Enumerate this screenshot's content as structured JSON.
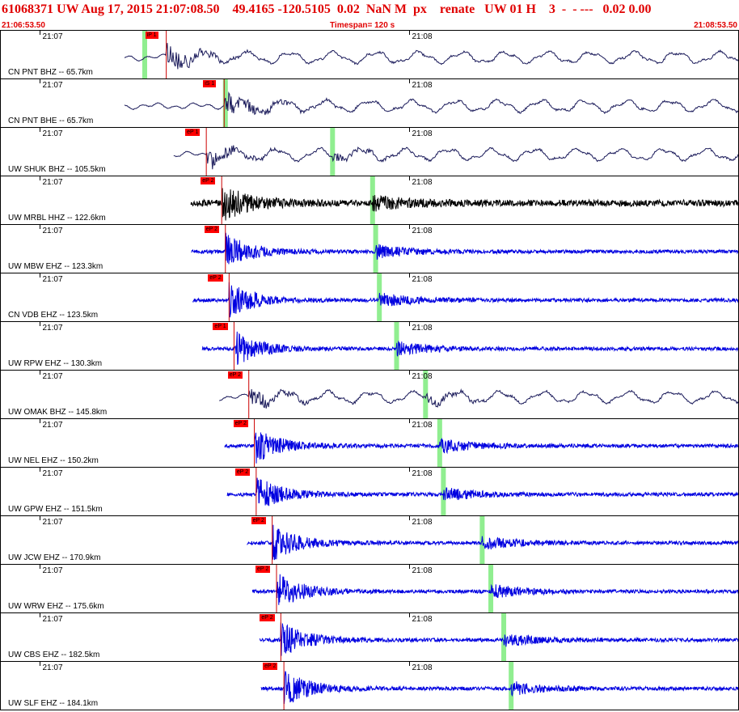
{
  "header": {
    "title": "61068371 UW Aug 17, 2015 21:07:08.50    49.4165 -120.5105  0.02  NaN M  px    renate   UW 01 H    3  -  - ---   0.02 0.00",
    "start_time": "21:06:53.50",
    "timespan": "Timespan= 120 s",
    "end_time": "21:08:53.50"
  },
  "minute_labels": [
    "21:07",
    "21:08"
  ],
  "colors": {
    "header_text": "#e00000",
    "pick_tag": "#ff0000",
    "pick_line": "#cc0000",
    "s_marker": "#90ee90",
    "trace_broadband": "#1a1a5a",
    "trace_hhz": "#000000",
    "trace_short_period": "#0000e0"
  },
  "channels": [
    {
      "label": "CN PNT BHZ -- 65.7km",
      "pick": "iP 1",
      "p_time": 27.0,
      "s_time": 23.5,
      "trace_start": 20.2,
      "kind": "broadband"
    },
    {
      "label": "CN PNT BHE -- 65.7km",
      "pick": "iS 1",
      "p_time": 36.4,
      "s_time": 36.6,
      "trace_start": 20.2,
      "kind": "broadband"
    },
    {
      "label": "UW SHUK BHZ -- 105.5km",
      "pick": "eP 1",
      "p_time": 33.5,
      "s_time": 54.0,
      "trace_start": 28.2,
      "kind": "broadband"
    },
    {
      "label": "UW MRBL HHZ -- 122.6km",
      "pick": "eP 2",
      "p_time": 36.0,
      "s_time": 60.5,
      "trace_start": 31.0,
      "kind": "hhz"
    },
    {
      "label": "UW MBW EHZ -- 123.3km",
      "pick": "eP 2",
      "p_time": 36.6,
      "s_time": 61.0,
      "trace_start": 31.1,
      "kind": "short_period"
    },
    {
      "label": "CN VDB EHZ -- 123.5km",
      "pick": "eP 2",
      "p_time": 37.2,
      "s_time": 61.6,
      "trace_start": 31.3,
      "kind": "short_period"
    },
    {
      "label": "UW RPW EHZ -- 130.3km",
      "pick": "eP 1",
      "p_time": 38.0,
      "s_time": 64.4,
      "trace_start": 32.8,
      "kind": "short_period"
    },
    {
      "label": "UW OMAK BHZ -- 145.8km",
      "pick": "eP 2",
      "p_time": 40.4,
      "s_time": 69.1,
      "trace_start": 35.6,
      "kind": "broadband"
    },
    {
      "label": "UW NEL EHZ -- 150.2km",
      "pick": "eP 2",
      "p_time": 41.3,
      "s_time": 71.4,
      "trace_start": 36.5,
      "kind": "short_period"
    },
    {
      "label": "UW GPW EHZ -- 151.5km",
      "pick": "eP 2",
      "p_time": 41.6,
      "s_time": 72.0,
      "trace_start": 36.9,
      "kind": "short_period"
    },
    {
      "label": "UW JCW EHZ -- 170.9km",
      "pick": "eP 2",
      "p_time": 44.2,
      "s_time": 78.3,
      "trace_start": 40.1,
      "kind": "short_period"
    },
    {
      "label": "UW WRW EHZ -- 175.6km",
      "pick": "eP 2",
      "p_time": 44.9,
      "s_time": 79.7,
      "trace_start": 41.0,
      "kind": "short_period"
    },
    {
      "label": "UW CBS EHZ -- 182.5km",
      "pick": "eP 2",
      "p_time": 45.6,
      "s_time": 81.8,
      "trace_start": 42.2,
      "kind": "short_period"
    },
    {
      "label": "UW SLF EHZ -- 184.1km",
      "pick": "eP 2",
      "p_time": 46.1,
      "s_time": 83.0,
      "trace_start": 42.4,
      "kind": "short_period"
    }
  ],
  "window": {
    "start_seconds": 0,
    "end_seconds": 120,
    "minute_marks_seconds": [
      6.5,
      66.5
    ]
  }
}
